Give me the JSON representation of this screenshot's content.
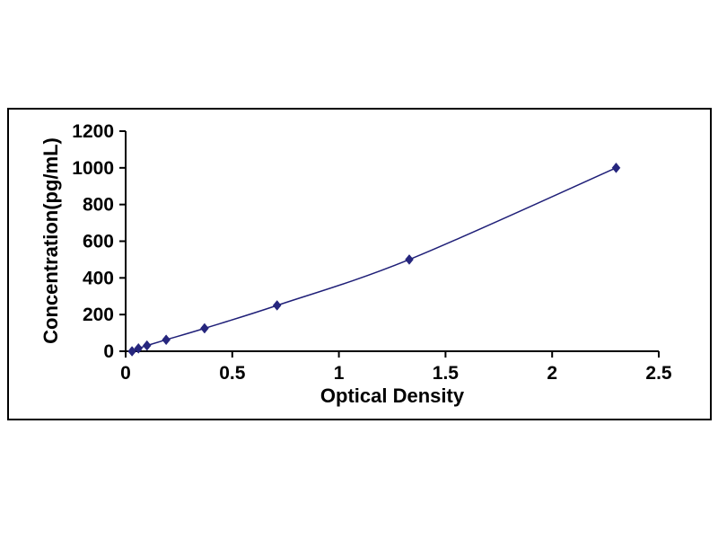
{
  "chart_data": {
    "type": "line",
    "title": "",
    "xlabel": "Optical Density",
    "ylabel": "Concentration(pg/mL)",
    "x": [
      0.03,
      0.06,
      0.1,
      0.19,
      0.37,
      0.71,
      1.33,
      2.3
    ],
    "y": [
      0,
      15.6,
      31.2,
      62.5,
      125,
      250,
      500,
      1000
    ],
    "xlim": [
      0,
      2.5
    ],
    "ylim": [
      0,
      1200
    ],
    "x_ticks": [
      0,
      0.5,
      1,
      1.5,
      2,
      2.5
    ],
    "y_ticks": [
      0,
      200,
      400,
      600,
      800,
      1000,
      1200
    ],
    "grid": false,
    "legend": "none",
    "marker": "diamond",
    "line_color": "#1f1f78",
    "marker_color": "#26267e",
    "axis_color": "#000000",
    "border_color": "#000000",
    "background_color": "#ffffff"
  }
}
